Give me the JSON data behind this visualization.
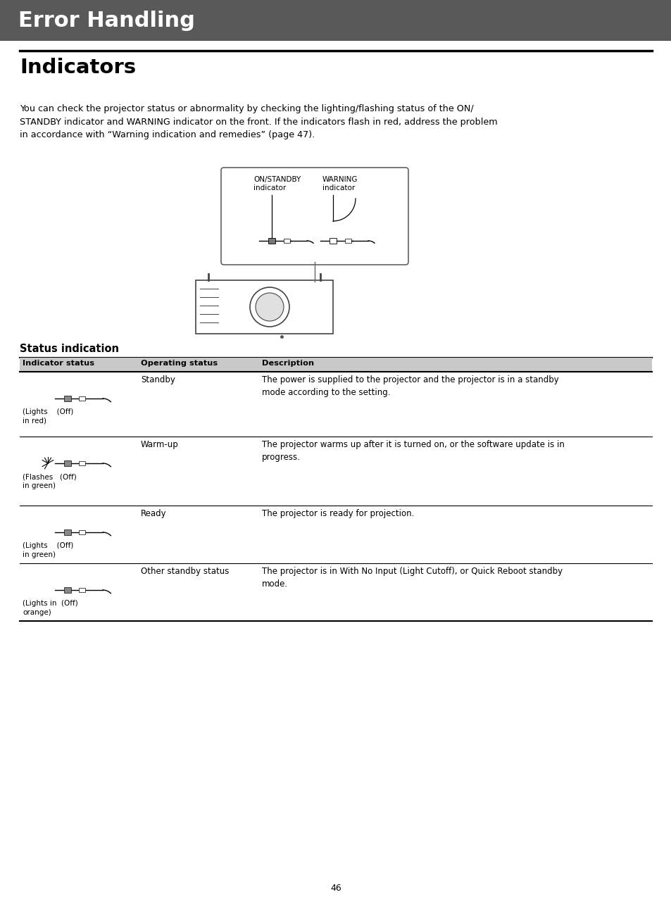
{
  "page_bg": "#ffffff",
  "header_bg": "#595959",
  "header_text": "Error Handling",
  "header_text_color": "#ffffff",
  "section_title": "Indicators",
  "body_text": "You can check the projector status or abnormality by checking the lighting/flashing status of the ON/\nSTANDBY indicator and WARNING indicator on the front. If the indicators flash in red, address the problem\nin accordance with “Warning indication and remedies” (page 47).",
  "status_section_title": "Status indication",
  "table_header_bg": "#c8c8c8",
  "table_col1": "Indicator status",
  "table_col2": "Operating status",
  "table_col3": "Description",
  "rows": [
    {
      "op_status": "Standby",
      "description": "The power is supplied to the projector and the projector is in a standby\nmode according to the setting.",
      "label_line1": "(Lights    (Off)",
      "label_line2": "in red)"
    },
    {
      "op_status": "Warm-up",
      "description": "The projector warms up after it is turned on, or the software update is in\nprogress.",
      "label_line1": "(Flashes   (Off)",
      "label_line2": "in green)"
    },
    {
      "op_status": "Ready",
      "description": "The projector is ready for projection.",
      "label_line1": "(Lights    (Off)",
      "label_line2": "in green)"
    },
    {
      "op_status": "Other standby status",
      "description": "The projector is in With No Input (Light Cutoff), or Quick Reboot standby\nmode.",
      "label_line1": "(Lights in  (Off)",
      "label_line2": "orange)"
    }
  ],
  "page_number": "46",
  "diagram_label1": "ON/STANDBY",
  "diagram_label2": "indicator",
  "diagram_label3": "WARNING",
  "diagram_label4": "indicator"
}
